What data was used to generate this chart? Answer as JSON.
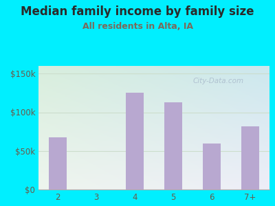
{
  "title": "Median family income by family size",
  "subtitle": "All residents in Alta, IA",
  "categories": [
    "2",
    "3",
    "4",
    "5",
    "6",
    "7+"
  ],
  "values": [
    68000,
    0,
    125000,
    113000,
    60000,
    82000
  ],
  "bar_color": "#b8a8d0",
  "background_outer": "#00efff",
  "bg_top_left": "#d8eedd",
  "bg_top_right": "#cce8ee",
  "bg_bottom_left": "#e8f0e0",
  "bg_bottom_right": "#dde8ee",
  "yticks": [
    0,
    50000,
    100000,
    150000
  ],
  "ytick_labels": [
    "$0",
    "$50k",
    "$100k",
    "$150k"
  ],
  "ylim": [
    0,
    160000
  ],
  "title_fontsize": 12,
  "subtitle_fontsize": 9,
  "tick_fontsize": 8.5,
  "title_color": "#2a2a2a",
  "subtitle_color": "#7a6a5a",
  "tick_color": "#6a5a4a",
  "watermark": "City-Data.com",
  "watermark_color": "#aabbcc",
  "grid_color": "#ccddcc",
  "spine_color": "#aaaaaa"
}
